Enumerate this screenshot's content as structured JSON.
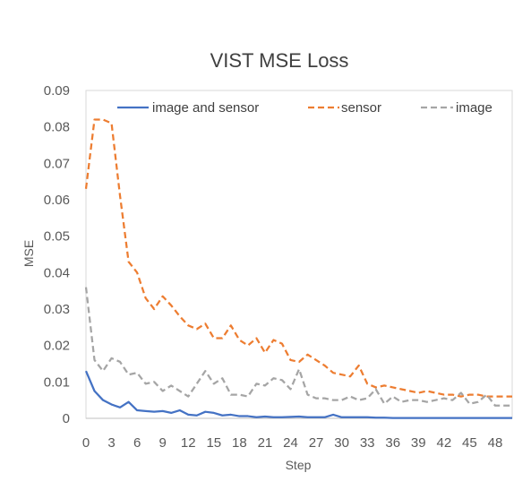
{
  "chart_data": {
    "type": "line",
    "title": "VIST MSE Loss",
    "xlabel": "Step",
    "ylabel": "MSE",
    "xlim": [
      0,
      50
    ],
    "ylim": [
      0,
      0.09
    ],
    "x_ticks": [
      0,
      3,
      6,
      9,
      12,
      15,
      18,
      21,
      24,
      27,
      30,
      33,
      36,
      39,
      42,
      45,
      48
    ],
    "y_ticks": [
      "0",
      "0.01",
      "0.02",
      "0.03",
      "0.04",
      "0.05",
      "0.06",
      "0.07",
      "0.08",
      "0.09"
    ],
    "grid": false,
    "legend_position": "top",
    "x": [
      0,
      1,
      2,
      3,
      4,
      5,
      6,
      7,
      8,
      9,
      10,
      11,
      12,
      13,
      14,
      15,
      16,
      17,
      18,
      19,
      20,
      21,
      22,
      23,
      24,
      25,
      26,
      27,
      28,
      29,
      30,
      31,
      32,
      33,
      34,
      35,
      36,
      37,
      38,
      39,
      40,
      41,
      42,
      43,
      44,
      45,
      46,
      47,
      48,
      49,
      50
    ],
    "series": [
      {
        "name": "image and sensor",
        "color": "#4472C4",
        "dash": "solid",
        "values": [
          0.013,
          0.0075,
          0.005,
          0.0038,
          0.003,
          0.0045,
          0.0022,
          0.002,
          0.0018,
          0.002,
          0.0015,
          0.0022,
          0.001,
          0.0008,
          0.0018,
          0.0015,
          0.0008,
          0.001,
          0.0006,
          0.0006,
          0.0003,
          0.0005,
          0.0003,
          0.0003,
          0.0004,
          0.0005,
          0.0003,
          0.0003,
          0.0003,
          0.001,
          0.0003,
          0.0003,
          0.0003,
          0.0003,
          0.0002,
          0.0002,
          0.0001,
          0.0001,
          0.0001,
          0.0001,
          0.0001,
          0.0001,
          0.0001,
          0.0001,
          0.0001,
          0.0001,
          0.0001,
          0.0001,
          0.0001,
          0.0001,
          0.0001
        ]
      },
      {
        "name": "sensor",
        "color": "#ED7D31",
        "dash": "dashed",
        "values": [
          0.063,
          0.082,
          0.082,
          0.081,
          0.061,
          0.043,
          0.04,
          0.033,
          0.03,
          0.0335,
          0.031,
          0.028,
          0.0255,
          0.0245,
          0.026,
          0.022,
          0.022,
          0.0255,
          0.0215,
          0.02,
          0.022,
          0.018,
          0.0215,
          0.0205,
          0.016,
          0.0155,
          0.0175,
          0.016,
          0.0145,
          0.0125,
          0.012,
          0.0115,
          0.0145,
          0.0095,
          0.0085,
          0.009,
          0.0085,
          0.008,
          0.0075,
          0.007,
          0.0075,
          0.007,
          0.0065,
          0.0065,
          0.006,
          0.0065,
          0.0065,
          0.006,
          0.006,
          0.006,
          0.006
        ]
      },
      {
        "name": "image",
        "color": "#A5A5A5",
        "dash": "dashed",
        "values": [
          0.036,
          0.016,
          0.013,
          0.0165,
          0.0155,
          0.012,
          0.0125,
          0.0095,
          0.01,
          0.0075,
          0.009,
          0.0075,
          0.006,
          0.0095,
          0.013,
          0.0095,
          0.011,
          0.0065,
          0.0065,
          0.006,
          0.0095,
          0.009,
          0.011,
          0.0105,
          0.008,
          0.0135,
          0.0065,
          0.0055,
          0.0055,
          0.005,
          0.005,
          0.006,
          0.005,
          0.0055,
          0.008,
          0.004,
          0.006,
          0.0045,
          0.005,
          0.005,
          0.0045,
          0.005,
          0.0055,
          0.005,
          0.007,
          0.004,
          0.0045,
          0.0065,
          0.0035,
          0.0035,
          0.0035
        ]
      }
    ]
  }
}
